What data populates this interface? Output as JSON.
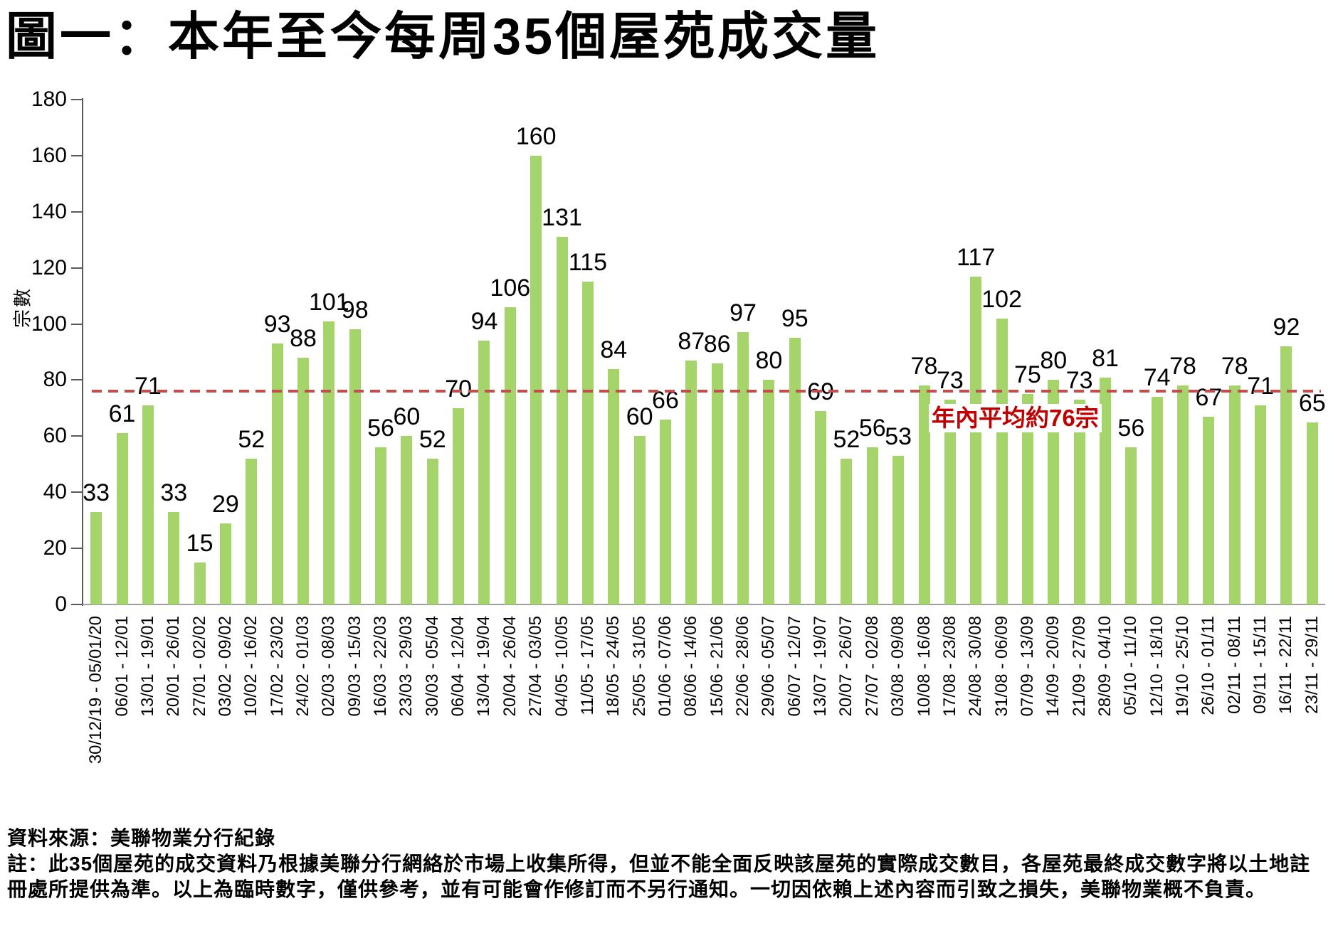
{
  "title": "圖一：本年至今每周35個屋苑成交量",
  "chart_data": {
    "type": "bar",
    "title": "圖一：本年至今每周35個屋苑成交量",
    "xlabel": "",
    "ylabel": "宗數",
    "ylim": [
      0,
      180
    ],
    "ytick_step": 20,
    "grid": false,
    "legend": "none",
    "bar_color": "#a5d46a",
    "categories": [
      "30/12/19 - 05/01/20",
      "06/01 - 12/01",
      "13/01 - 19/01",
      "20/01 - 26/01",
      "27/01 - 02/02",
      "03/02 - 09/02",
      "10/02 - 16/02",
      "17/02 - 23/02",
      "24/02 - 01/03",
      "02/03 - 08/03",
      "09/03 - 15/03",
      "16/03 - 22/03",
      "23/03 - 29/03",
      "30/03 - 05/04",
      "06/04 - 12/04",
      "13/04 - 19/04",
      "20/04 - 26/04",
      "27/04 - 03/05",
      "04/05 - 10/05",
      "11/05 - 17/05",
      "18/05 - 24/05",
      "25/05 - 31/05",
      "01/06 - 07/06",
      "08/06 - 14/06",
      "15/06 - 21/06",
      "22/06 - 28/06",
      "29/06 - 05/07",
      "06/07 - 12/07",
      "13/07 - 19/07",
      "20/07 - 26/07",
      "27/07 - 02/08",
      "03/08 - 09/08",
      "10/08 - 16/08",
      "17/08 - 23/08",
      "24/08 - 30/08",
      "31/08 - 06/09",
      "07/09 - 13/09",
      "14/09 - 20/09",
      "21/09 - 27/09",
      "28/09 - 04/10",
      "05/10 - 11/10",
      "12/10 - 18/10",
      "19/10 - 25/10",
      "26/10 - 01/11",
      "02/11 - 08/11",
      "09/11 - 15/11",
      "16/11 - 22/11",
      "23/11 - 29/11"
    ],
    "values": [
      33,
      61,
      71,
      33,
      15,
      29,
      52,
      93,
      88,
      101,
      98,
      56,
      60,
      52,
      70,
      94,
      106,
      160,
      131,
      115,
      84,
      60,
      66,
      87,
      86,
      97,
      80,
      95,
      69,
      52,
      56,
      53,
      78,
      73,
      117,
      102,
      75,
      80,
      73,
      81,
      56,
      74,
      78,
      67,
      78,
      71,
      92,
      65
    ],
    "average_line": {
      "value": 76,
      "label": "年內平均約76宗",
      "line_color": "#c0504d",
      "label_color": "#c00000"
    }
  },
  "footer": {
    "source": "資料來源：美聯物業分行紀錄",
    "note_lines": [
      "註：此35個屋苑的成交資料乃根據美聯分行網絡於市場上收集所得，但並不能全面反映該屋苑的實際成交數目，各屋苑最終成交數字將以土地註",
      "冊處所提供為準。以上為臨時數字，僅供參考，並有可能會作修訂而不另行通知。一切因依賴上述內容而引致之損失，美聯物業概不負責。"
    ]
  }
}
